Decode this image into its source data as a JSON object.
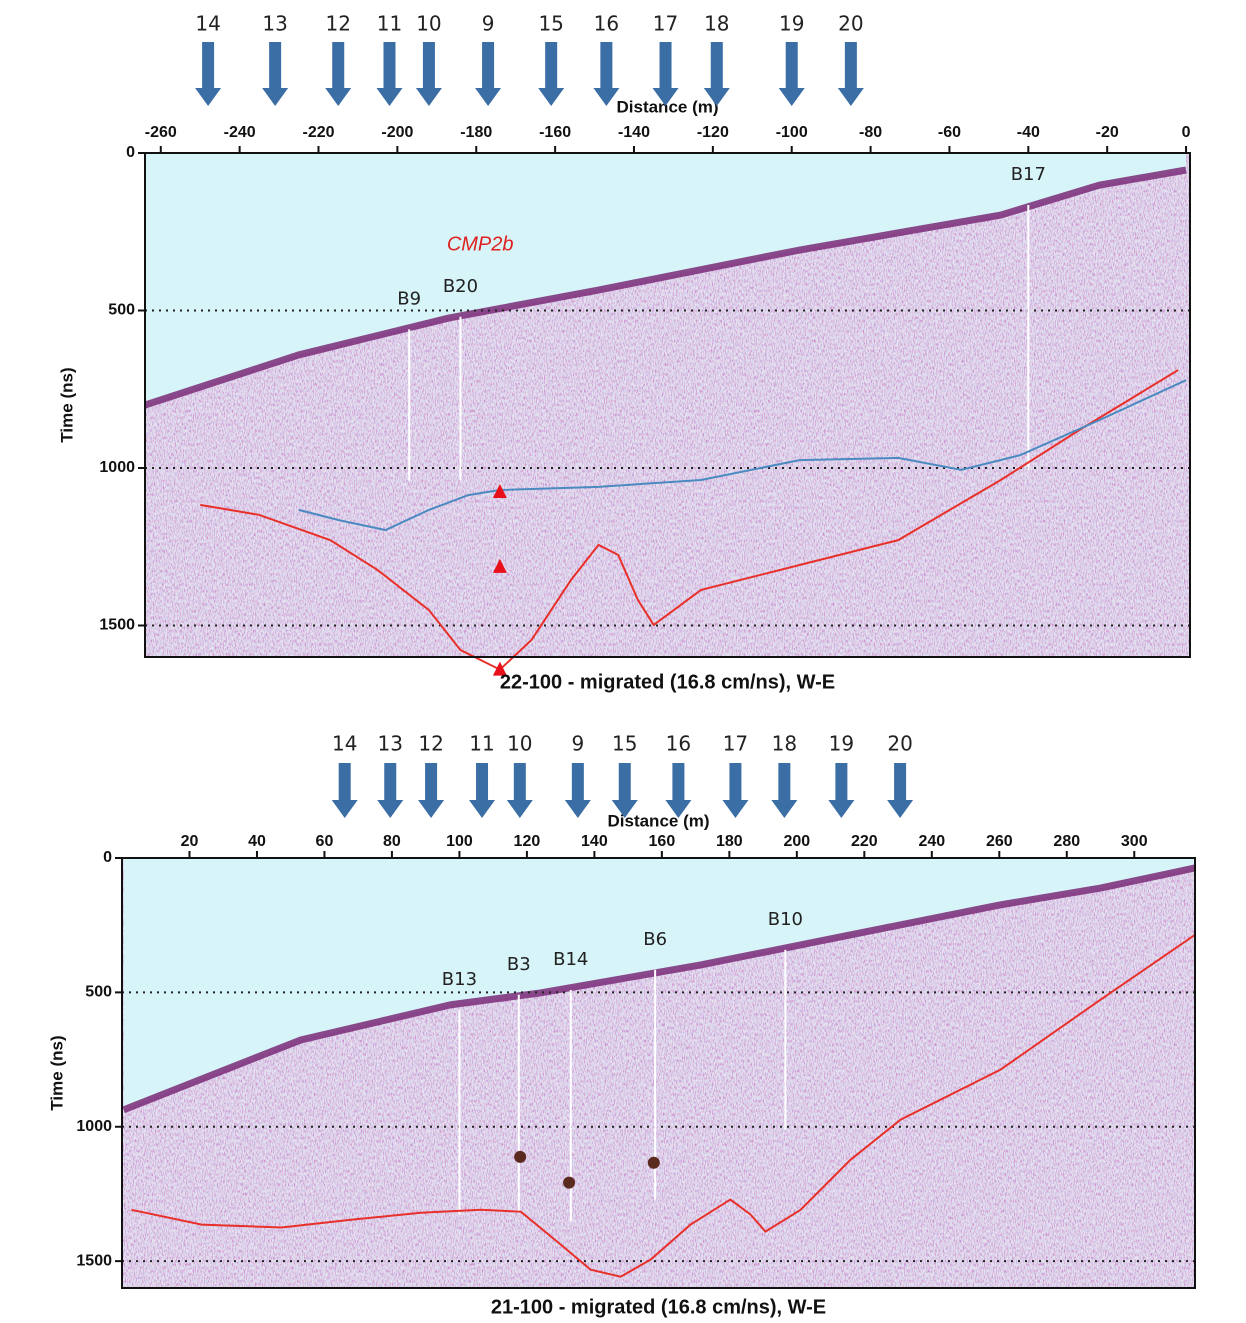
{
  "chart_data": [
    {
      "type": "radargram",
      "xlabel": "Distance (m)",
      "ylabel": "Time (ns)",
      "title": "22-100 - migrated (16.8 cm/ns), W-E",
      "xlim": [
        -264,
        1
      ],
      "ylim": [
        0,
        1600
      ],
      "xticks": [
        -260,
        -240,
        -220,
        -200,
        -180,
        -160,
        -140,
        -120,
        -100,
        -80,
        -60,
        -40,
        -20,
        0
      ],
      "yticks": [
        0,
        500,
        1000,
        1500
      ],
      "grid": true,
      "arrows": [
        {
          "label": "14",
          "x": -248
        },
        {
          "label": "13",
          "x": -231
        },
        {
          "label": "12",
          "x": -215
        },
        {
          "label": "11",
          "x": -202
        },
        {
          "label": "10",
          "x": -192
        },
        {
          "label": "9",
          "x": -177
        },
        {
          "label": "15",
          "x": -161
        },
        {
          "label": "16",
          "x": -147
        },
        {
          "label": "17",
          "x": -132
        },
        {
          "label": "18",
          "x": -119
        },
        {
          "label": "19",
          "x": -100
        },
        {
          "label": "20",
          "x": -85
        }
      ],
      "boreholes": [
        {
          "label": "B9",
          "x": -197,
          "top": 560,
          "bottom": 1040
        },
        {
          "label": "B20",
          "x": -184,
          "top": 520,
          "bottom": 1038
        },
        {
          "label": "B17",
          "x": -40,
          "top": 165,
          "bottom": 1005
        }
      ],
      "annotations": [
        {
          "text": "CMP2b",
          "x": -179,
          "y": 292,
          "color": "#e02020"
        }
      ],
      "surface": {
        "color": "#7a2a78",
        "x": [
          -264,
          -225,
          -187,
          -149,
          -98,
          -47,
          -22,
          0
        ],
        "y": [
          800,
          641,
          524,
          435,
          308,
          197,
          102,
          54
        ]
      },
      "lines": [
        {
          "color": "#e8302a",
          "x": [
            -250,
            -235,
            -217,
            -205,
            -192,
            -184,
            -174,
            -166,
            -156,
            -149,
            -144,
            -139,
            -135,
            -123,
            -98,
            -73,
            -47,
            -27,
            -2
          ],
          "y": [
            1117,
            1149,
            1229,
            1324,
            1451,
            1578,
            1640,
            1546,
            1356,
            1244,
            1276,
            1419,
            1498,
            1387,
            1308,
            1229,
            1038,
            879,
            689
          ]
        },
        {
          "color": "#4a8ac0",
          "x": [
            -225,
            -215,
            -203,
            -192,
            -182,
            -174,
            -149,
            -123,
            -98,
            -73,
            -57,
            -42,
            -22,
            0
          ],
          "y": [
            1133,
            1165,
            1197,
            1133,
            1086,
            1070,
            1060,
            1038,
            975,
            968,
            1006,
            959,
            848,
            721
          ]
        }
      ],
      "markers": [
        {
          "shape": "triangle",
          "color": "#e8101a",
          "x": [
            -174,
            -174,
            -174
          ],
          "y": [
            1076,
            1314,
            1640
          ]
        }
      ]
    },
    {
      "type": "radargram",
      "xlabel": "Distance (m)",
      "ylabel": "Time (ns)",
      "title": "21-100 - migrated (16.8 cm/ns), W-E",
      "xlim": [
        0,
        318
      ],
      "ylim": [
        0,
        1600
      ],
      "xticks": [
        20,
        40,
        60,
        80,
        100,
        120,
        140,
        160,
        180,
        200,
        220,
        240,
        260,
        280,
        300
      ],
      "yticks": [
        0,
        500,
        1000,
        1500
      ],
      "grid": true,
      "arrows": [
        {
          "label": "14",
          "x": 66
        },
        {
          "label": "13",
          "x": 79.5
        },
        {
          "label": "12",
          "x": 91.6
        },
        {
          "label": "11",
          "x": 106.7
        },
        {
          "label": "10",
          "x": 117.9
        },
        {
          "label": "9",
          "x": 135.1
        },
        {
          "label": "15",
          "x": 149
        },
        {
          "label": "16",
          "x": 164.9
        },
        {
          "label": "17",
          "x": 181.8
        },
        {
          "label": "18",
          "x": 196.3
        },
        {
          "label": "19",
          "x": 213.2
        },
        {
          "label": "20",
          "x": 230.6
        }
      ],
      "boreholes": [
        {
          "label": "B13",
          "x": 100,
          "top": 565,
          "bottom": 1327
        },
        {
          "label": "B3",
          "x": 117.6,
          "top": 509,
          "bottom": 1316
        },
        {
          "label": "B14",
          "x": 133,
          "top": 491,
          "bottom": 1353
        },
        {
          "label": "B6",
          "x": 158,
          "top": 416,
          "bottom": 1271
        },
        {
          "label": "B10",
          "x": 196.6,
          "top": 342,
          "bottom": 1011
        }
      ],
      "annotations": [],
      "surface": {
        "color": "#7a2a78",
        "x": [
          0.5,
          53,
          97.5,
          124,
          171.5,
          216,
          260,
          290,
          318
        ],
        "y": [
          937,
          677,
          546,
          502,
          398,
          286,
          175,
          112,
          37
        ]
      },
      "lines": [
        {
          "color": "#e8302a",
          "x": [
            2.8,
            23.6,
            47.2,
            67.9,
            88.6,
            106.4,
            118.2,
            130.1,
            138.9,
            147.8,
            156.7,
            168.5,
            180.3,
            186.3,
            190.7,
            201.1,
            215.9,
            230.7,
            260.3,
            289.9,
            318
          ],
          "y": [
            1309,
            1364,
            1375,
            1346,
            1320,
            1309,
            1316,
            1439,
            1532,
            1558,
            1494,
            1364,
            1271,
            1327,
            1390,
            1309,
            1123,
            974,
            788,
            528,
            286
          ]
        }
      ],
      "markers": [
        {
          "shape": "circle",
          "color": "#5a2a1e",
          "x": [
            118,
            132.5,
            157.6
          ],
          "y": [
            1112,
            1208,
            1134
          ]
        }
      ]
    }
  ]
}
